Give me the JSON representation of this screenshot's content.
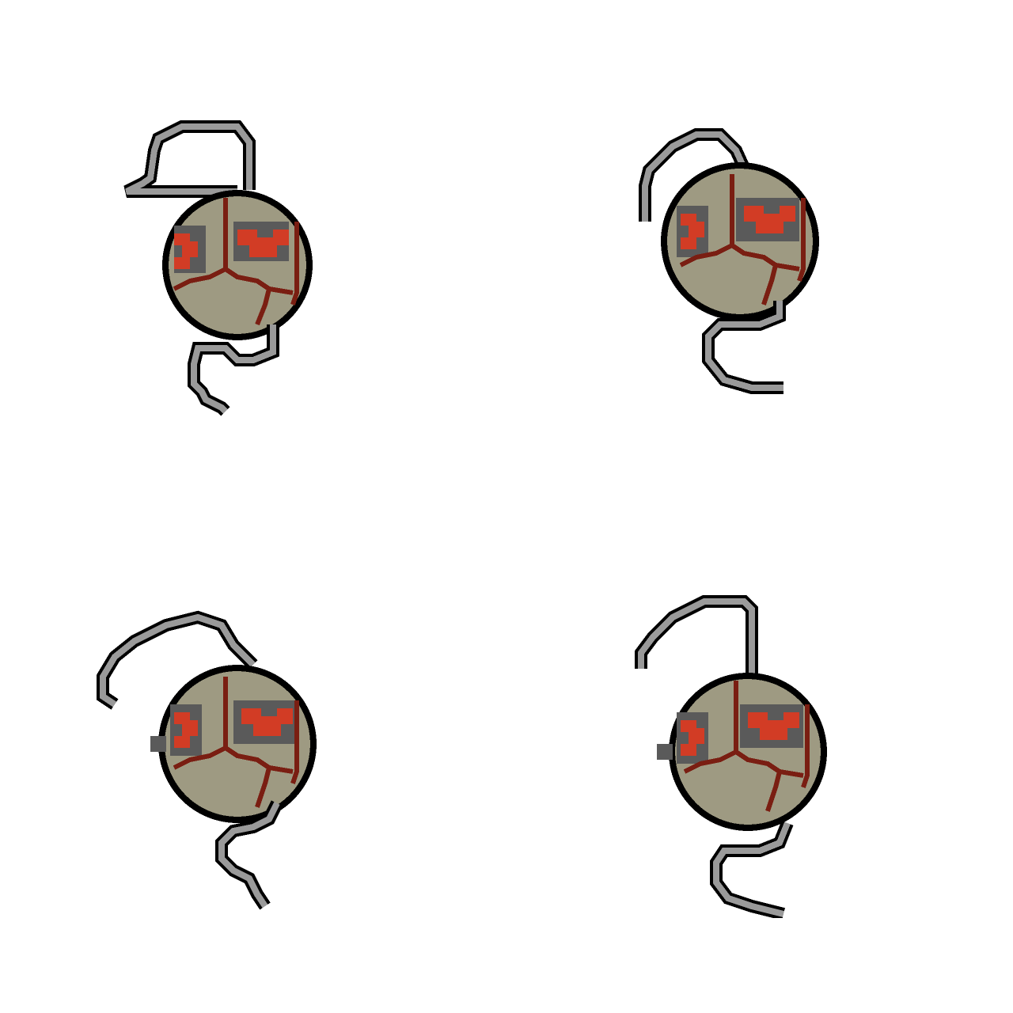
{
  "scene": {
    "background": "#ffffff",
    "sprite_count": 4
  },
  "palette": {
    "outline": "#000000",
    "body": "#9e9a82",
    "crack": "#7a1e12",
    "eye_red": "#d23c25",
    "eye_dark": "#5a5a5a",
    "tail": "#9a9a9a",
    "tail_outline": "#000000"
  },
  "sprites": [
    {
      "name": "orb-creature-frame-1",
      "pose": "tail-up-left"
    },
    {
      "name": "orb-creature-frame-2",
      "pose": "tail-curled-left"
    },
    {
      "name": "orb-creature-frame-3",
      "pose": "tail-arched-left"
    },
    {
      "name": "orb-creature-frame-4",
      "pose": "tail-hook-left"
    }
  ]
}
